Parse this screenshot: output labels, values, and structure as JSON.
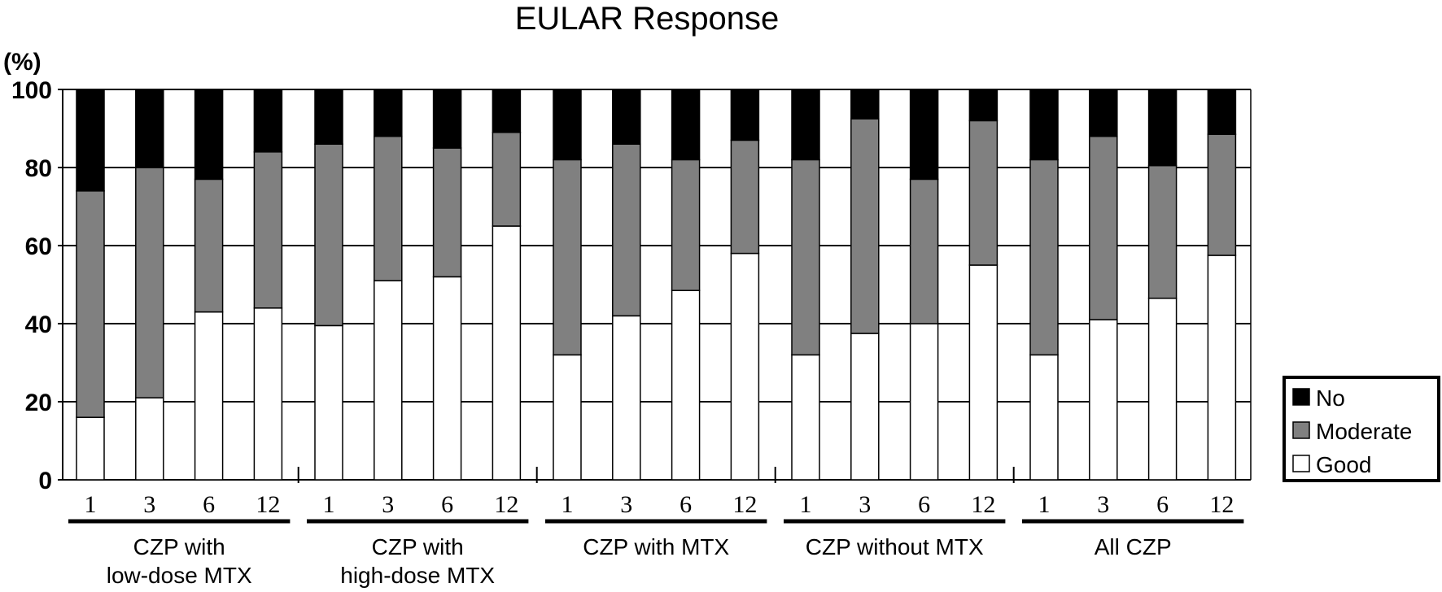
{
  "chart_data": {
    "type": "bar",
    "stacked": true,
    "title": "EULAR Response",
    "y_unit_label": "(%)",
    "ylim": [
      0,
      100
    ],
    "yticks": [
      0,
      20,
      40,
      60,
      80,
      100
    ],
    "grid": true,
    "legend_position": "right",
    "groups": [
      {
        "label_lines": [
          "CZP with",
          "low-dose MTX"
        ],
        "categories": [
          "1",
          "3",
          "6",
          "12"
        ]
      },
      {
        "label_lines": [
          "CZP with",
          "high-dose MTX"
        ],
        "categories": [
          "1",
          "3",
          "6",
          "12"
        ]
      },
      {
        "label_lines": [
          "CZP with MTX"
        ],
        "categories": [
          "1",
          "3",
          "6",
          "12"
        ]
      },
      {
        "label_lines": [
          "CZP without MTX"
        ],
        "categories": [
          "1",
          "3",
          "6",
          "12"
        ]
      },
      {
        "label_lines": [
          "All CZP"
        ],
        "categories": [
          "1",
          "3",
          "6",
          "12"
        ]
      }
    ],
    "series": [
      {
        "name": "Good",
        "color": "#ffffff",
        "values": [
          16,
          21,
          43,
          44,
          39.5,
          51,
          52,
          65,
          32,
          42,
          48.5,
          58,
          32,
          37.5,
          40,
          55,
          32,
          41,
          46.5,
          57.5
        ]
      },
      {
        "name": "Moderate",
        "color": "#808080",
        "values": [
          58,
          59,
          34,
          40,
          46.5,
          37,
          33,
          24,
          50,
          44,
          33.5,
          29,
          50,
          55,
          37,
          37,
          50,
          47,
          34,
          31
        ]
      },
      {
        "name": "No",
        "color": "#000000",
        "values": [
          26,
          20,
          23,
          16,
          14,
          12,
          15,
          11,
          18,
          14,
          18,
          13,
          18,
          7.5,
          23,
          8,
          18,
          12,
          19.5,
          11.5
        ]
      }
    ],
    "legend_order": [
      "No",
      "Moderate",
      "Good"
    ]
  }
}
